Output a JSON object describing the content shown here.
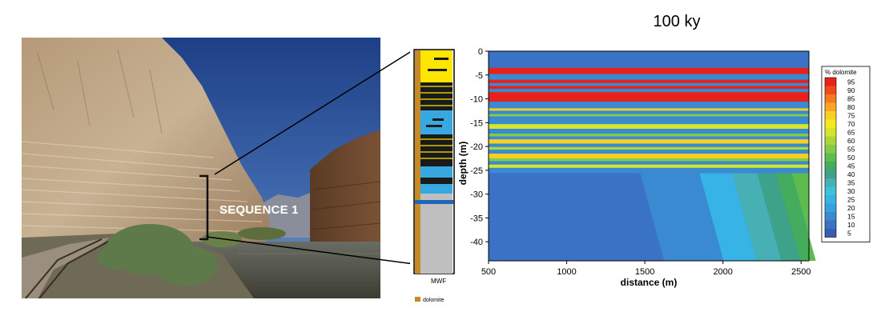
{
  "figure": {
    "title": "100 ky",
    "sequence_label": "SEQUENCE 1",
    "column_footer": "MWF",
    "column_legend": "dolomite"
  },
  "chart_data": {
    "type": "heatmap",
    "title": "100 ky",
    "xlabel": "distance (m)",
    "ylabel": "depth (m)",
    "xlim": [
      500,
      2550
    ],
    "ylim": [
      -44,
      0
    ],
    "x_ticks": [
      500,
      1000,
      1500,
      2000,
      2500
    ],
    "y_ticks": [
      0,
      -5,
      -10,
      -15,
      -20,
      -25,
      -30,
      -35,
      -40
    ],
    "colorbar": {
      "title": "% dolomite",
      "levels": [
        95,
        90,
        85,
        80,
        75,
        70,
        65,
        60,
        55,
        50,
        45,
        40,
        35,
        30,
        25,
        20,
        15,
        10,
        5
      ],
      "colors": [
        "#e8211b",
        "#f04a1a",
        "#f57a1f",
        "#f9a625",
        "#f8cf22",
        "#f4ea21",
        "#d4e62c",
        "#aad83c",
        "#85ca47",
        "#5ebb4d",
        "#44ad5d",
        "#3ea18a",
        "#46b0b5",
        "#3fc1d6",
        "#38b3e6",
        "#37a0de",
        "#3a8ad2",
        "#3a72c6",
        "#3a5cb3"
      ]
    },
    "layers": [
      {
        "top": 0,
        "bottom": -3.5,
        "dolomite": 10
      },
      {
        "top": -3.5,
        "bottom": -4.8,
        "dolomite": 95
      },
      {
        "top": -4.8,
        "bottom": -6,
        "dolomite": 15
      },
      {
        "top": -6,
        "bottom": -6.7,
        "dolomite": 95
      },
      {
        "top": -6.7,
        "bottom": -7.3,
        "dolomite": 15
      },
      {
        "top": -7.3,
        "bottom": -7.9,
        "dolomite": 95
      },
      {
        "top": -7.9,
        "bottom": -8.6,
        "dolomite": 15
      },
      {
        "top": -8.6,
        "bottom": -10.6,
        "dolomite": 95
      },
      {
        "top": -10.6,
        "bottom": -12,
        "dolomite": 15
      },
      {
        "top": -12,
        "bottom": -12.5,
        "dolomite": 75
      },
      {
        "top": -12.5,
        "bottom": -13.2,
        "dolomite": 15
      },
      {
        "top": -13.2,
        "bottom": -13.7,
        "dolomite": 55
      },
      {
        "top": -13.7,
        "bottom": -15.3,
        "dolomite": 15
      },
      {
        "top": -15.3,
        "bottom": -16.3,
        "dolomite": 65
      },
      {
        "top": -16.3,
        "bottom": -17.3,
        "dolomite": 15
      },
      {
        "top": -17.3,
        "bottom": -17.9,
        "dolomite": 55
      },
      {
        "top": -17.9,
        "bottom": -18.5,
        "dolomite": 15
      },
      {
        "top": -18.5,
        "bottom": -19.4,
        "dolomite": 75
      },
      {
        "top": -19.4,
        "bottom": -20.1,
        "dolomite": 15
      },
      {
        "top": -20.1,
        "bottom": -20.7,
        "dolomite": 60
      },
      {
        "top": -20.7,
        "bottom": -21.5,
        "dolomite": 15
      },
      {
        "top": -21.5,
        "bottom": -22.5,
        "dolomite": 75
      },
      {
        "top": -22.5,
        "bottom": -23.1,
        "dolomite": 55
      },
      {
        "top": -23.1,
        "bottom": -23.8,
        "dolomite": 15
      },
      {
        "top": -23.8,
        "bottom": -24.5,
        "dolomite": 65
      },
      {
        "top": -24.5,
        "bottom": -25.6,
        "dolomite": 15
      }
    ],
    "lower_zone_bands": [
      {
        "x_start": 500,
        "x_end": 1470,
        "dolomite": 10
      },
      {
        "x_start": 1470,
        "x_end": 1850,
        "dolomite": 15
      },
      {
        "x_start": 1850,
        "x_end": 2060,
        "dolomite": 25
      },
      {
        "x_start": 2060,
        "x_end": 2220,
        "dolomite": 35
      },
      {
        "x_start": 2220,
        "x_end": 2340,
        "dolomite": 40
      },
      {
        "x_start": 2340,
        "x_end": 2440,
        "dolomite": 45
      },
      {
        "x_start": 2440,
        "x_end": 2550,
        "dolomite": 50
      }
    ]
  }
}
